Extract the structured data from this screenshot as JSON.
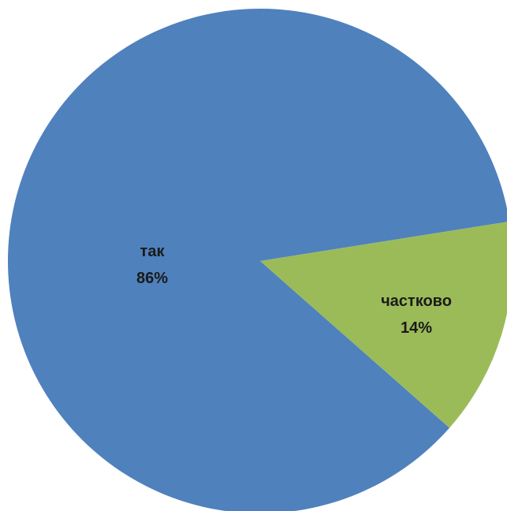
{
  "chart_data": {
    "type": "pie",
    "categories": [
      "так",
      "частково"
    ],
    "values": [
      86,
      14
    ],
    "value_labels": [
      "86%",
      "14%"
    ],
    "colors": [
      "#4F81BD",
      "#9BBB59"
    ],
    "title": "",
    "legend": "none"
  }
}
